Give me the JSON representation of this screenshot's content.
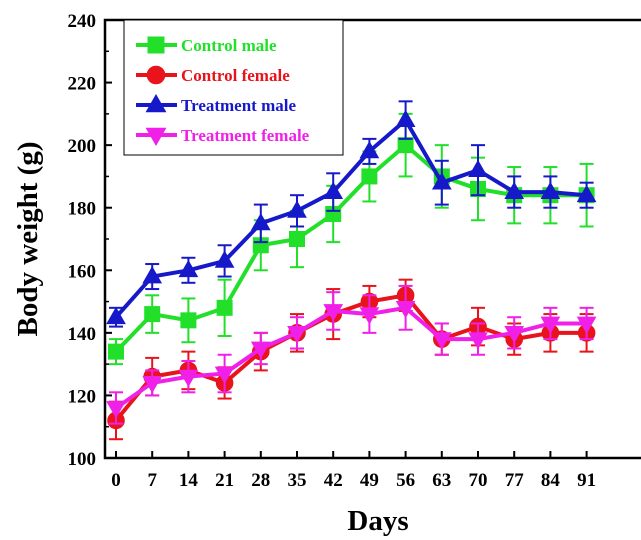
{
  "chart_data": {
    "type": "line",
    "xlabel": "Days",
    "ylabel": "Body weight (g)",
    "x": [
      0,
      7,
      14,
      21,
      28,
      35,
      42,
      49,
      56,
      63,
      70,
      77,
      84,
      91
    ],
    "x_tick_labels": [
      "0",
      "7",
      "14",
      "21",
      "28",
      "35",
      "42",
      "49",
      "56",
      "63",
      "70",
      "77",
      "84",
      "91"
    ],
    "y_ticks": [
      100,
      120,
      140,
      160,
      180,
      200,
      220,
      240
    ],
    "y_tick_labels": [
      "100",
      "120",
      "140",
      "160",
      "180",
      "200",
      "220",
      "240"
    ],
    "ylim": [
      100,
      240
    ],
    "xlim": [
      0,
      91
    ],
    "grid": false,
    "legend_position": "top-left",
    "series": [
      {
        "name": "Control male",
        "color": "#22e02a",
        "marker": "square",
        "values": [
          134,
          146,
          144,
          148,
          168,
          170,
          178,
          190,
          200,
          190,
          186,
          184,
          184,
          184
        ],
        "errors": [
          4,
          6,
          7,
          9,
          8,
          9,
          9,
          8,
          10,
          10,
          10,
          9,
          9,
          10
        ]
      },
      {
        "name": "Control female",
        "color": "#e8131b",
        "marker": "circle",
        "values": [
          112,
          126,
          128,
          124,
          134,
          140,
          146,
          150,
          152,
          138,
          142,
          138,
          140,
          140
        ],
        "errors": [
          6,
          6,
          6,
          5,
          6,
          6,
          8,
          5,
          5,
          5,
          6,
          5,
          6,
          6
        ]
      },
      {
        "name": "Treatment male",
        "color": "#1619c9",
        "marker": "triangle-up",
        "values": [
          145,
          158,
          160,
          163,
          175,
          179,
          185,
          198,
          208,
          188,
          192,
          185,
          185,
          184
        ],
        "errors": [
          3,
          4,
          4,
          5,
          6,
          5,
          6,
          4,
          6,
          7,
          8,
          5,
          5,
          4
        ]
      },
      {
        "name": "Treatment female",
        "color": "#f020e8",
        "marker": "triangle-down",
        "values": [
          116,
          124,
          126,
          127,
          135,
          140,
          147,
          146,
          148,
          138,
          138,
          140,
          143,
          143
        ],
        "errors": [
          5,
          4,
          5,
          6,
          5,
          5,
          6,
          6,
          7,
          5,
          5,
          5,
          5,
          5
        ]
      }
    ]
  }
}
